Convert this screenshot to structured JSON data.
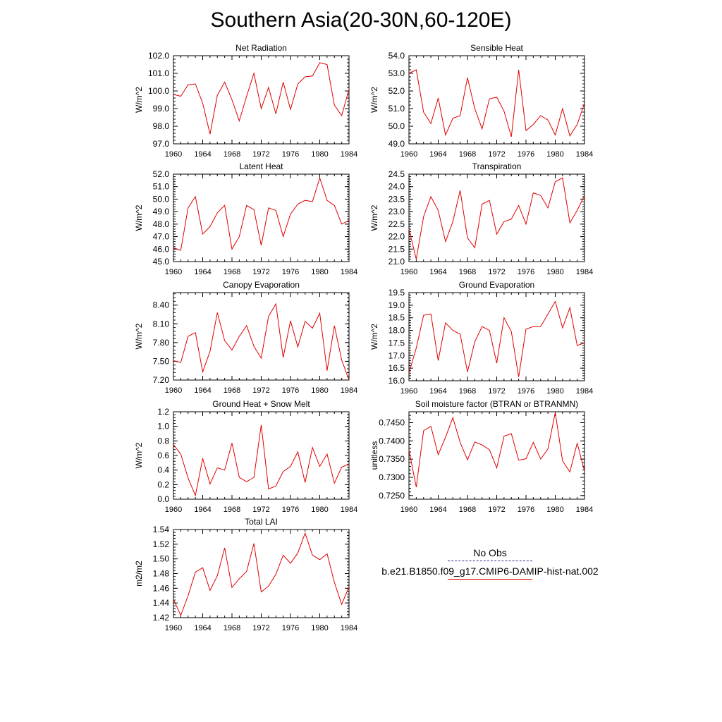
{
  "figure": {
    "title": "Southern Asia(20-30N,60-120E)"
  },
  "legend": {
    "items": [
      {
        "label": "No Obs",
        "style": "dashed",
        "color": "#2a2a8a"
      },
      {
        "label": "b.e21.B1850.f09_g17.CMIP6-DAMIP-hist-nat.002",
        "style": "solid",
        "color": "#e00000"
      }
    ]
  },
  "chart_data": [
    {
      "type": "line",
      "title": "Net Radiation",
      "ylabel": "W/m^2",
      "xlim": [
        1960,
        1984
      ],
      "ylim": [
        97.0,
        102.0
      ],
      "xticks": [
        "1960",
        "1964",
        "1968",
        "1972",
        "1976",
        "1980",
        "1984"
      ],
      "yticks": [
        "97.0",
        "98.0",
        "99.0",
        "100.0",
        "101.0",
        "102.0"
      ],
      "series": [
        {
          "color": "#e00000",
          "x": [
            1960,
            1961,
            1962,
            1963,
            1964,
            1965,
            1966,
            1967,
            1968,
            1969,
            1970,
            1971,
            1972,
            1973,
            1974,
            1975,
            1976,
            1977,
            1978,
            1979,
            1980,
            1981,
            1982,
            1983,
            1984
          ],
          "y": [
            99.8,
            99.7,
            100.35,
            100.4,
            99.3,
            97.55,
            99.75,
            100.5,
            99.5,
            98.3,
            99.7,
            101.0,
            99.0,
            100.2,
            98.7,
            100.5,
            98.95,
            100.4,
            100.8,
            100.85,
            101.6,
            101.5,
            99.2,
            98.6,
            100.1
          ]
        }
      ]
    },
    {
      "type": "line",
      "title": "Sensible Heat",
      "ylabel": "W/m^2",
      "xlim": [
        1960,
        1984
      ],
      "ylim": [
        49.0,
        54.0
      ],
      "xticks": [
        "1960",
        "1964",
        "1968",
        "1972",
        "1976",
        "1980",
        "1984"
      ],
      "yticks": [
        "49.0",
        "50.0",
        "51.0",
        "52.0",
        "53.0",
        "54.0"
      ],
      "series": [
        {
          "color": "#e00000",
          "x": [
            1960,
            1961,
            1962,
            1963,
            1964,
            1965,
            1966,
            1967,
            1968,
            1969,
            1970,
            1971,
            1972,
            1973,
            1974,
            1975,
            1976,
            1977,
            1978,
            1979,
            1980,
            1981,
            1982,
            1983,
            1984
          ],
          "y": [
            53.0,
            53.2,
            50.8,
            50.15,
            51.6,
            49.5,
            50.45,
            50.6,
            52.75,
            51.0,
            49.85,
            51.55,
            51.65,
            50.85,
            49.4,
            53.2,
            49.75,
            50.1,
            50.6,
            50.35,
            49.5,
            51.0,
            49.45,
            50.1,
            51.3
          ]
        }
      ]
    },
    {
      "type": "line",
      "title": "Latent Heat",
      "ylabel": "W/m^2",
      "xlim": [
        1960,
        1984
      ],
      "ylim": [
        45.0,
        52.0
      ],
      "xticks": [
        "1960",
        "1964",
        "1968",
        "1972",
        "1976",
        "1980",
        "1984"
      ],
      "yticks": [
        "45.0",
        "46.0",
        "47.0",
        "48.0",
        "49.0",
        "50.0",
        "51.0",
        "52.0"
      ],
      "series": [
        {
          "color": "#e00000",
          "x": [
            1960,
            1961,
            1962,
            1963,
            1964,
            1965,
            1966,
            1967,
            1968,
            1969,
            1970,
            1971,
            1972,
            1973,
            1974,
            1975,
            1976,
            1977,
            1978,
            1979,
            1980,
            1981,
            1982,
            1983,
            1984
          ],
          "y": [
            46.1,
            45.9,
            49.3,
            50.2,
            47.2,
            47.8,
            48.9,
            49.5,
            46.0,
            47.0,
            49.5,
            49.15,
            46.3,
            49.3,
            49.1,
            47.0,
            48.8,
            49.6,
            49.9,
            49.8,
            51.7,
            49.9,
            49.5,
            48.0,
            48.3
          ]
        }
      ]
    },
    {
      "type": "line",
      "title": "Transpiration",
      "ylabel": "W/m^2",
      "xlim": [
        1960,
        1984
      ],
      "ylim": [
        21.0,
        24.5
      ],
      "xticks": [
        "1960",
        "1964",
        "1968",
        "1972",
        "1976",
        "1980",
        "1984"
      ],
      "yticks": [
        "21.0",
        "21.5",
        "22.0",
        "22.5",
        "23.0",
        "23.5",
        "24.0",
        "24.5"
      ],
      "series": [
        {
          "color": "#e00000",
          "x": [
            1960,
            1961,
            1962,
            1963,
            1964,
            1965,
            1966,
            1967,
            1968,
            1969,
            1970,
            1971,
            1972,
            1973,
            1974,
            1975,
            1976,
            1977,
            1978,
            1979,
            1980,
            1981,
            1982,
            1983,
            1984
          ],
          "y": [
            22.3,
            21.1,
            22.8,
            23.6,
            23.05,
            21.8,
            22.6,
            23.85,
            21.95,
            21.55,
            23.3,
            23.45,
            22.1,
            22.6,
            22.7,
            23.25,
            22.5,
            23.75,
            23.65,
            23.15,
            24.2,
            24.35,
            22.55,
            23.05,
            23.65
          ]
        }
      ]
    },
    {
      "type": "line",
      "title": "Canopy Evaporation",
      "ylabel": "W/m^2",
      "xlim": [
        1960,
        1984
      ],
      "ylim": [
        7.2,
        8.6
      ],
      "xticks": [
        "1960",
        "1964",
        "1968",
        "1972",
        "1976",
        "1980",
        "1984"
      ],
      "yticks": [
        "7.20",
        "7.50",
        "7.80",
        "8.10",
        "8.40"
      ],
      "series": [
        {
          "color": "#e00000",
          "x": [
            1960,
            1961,
            1962,
            1963,
            1964,
            1965,
            1966,
            1967,
            1968,
            1969,
            1970,
            1971,
            1972,
            1973,
            1974,
            1975,
            1976,
            1977,
            1978,
            1979,
            1980,
            1981,
            1982,
            1983,
            1984
          ],
          "y": [
            7.51,
            7.48,
            7.9,
            7.96,
            7.33,
            7.66,
            8.28,
            7.83,
            7.68,
            7.9,
            8.07,
            7.74,
            7.55,
            8.22,
            8.42,
            7.56,
            8.15,
            7.73,
            8.14,
            8.03,
            8.27,
            7.35,
            8.07,
            7.52,
            7.2
          ]
        }
      ]
    },
    {
      "type": "line",
      "title": "Ground Evaporation",
      "ylabel": "W/m^2",
      "xlim": [
        1960,
        1984
      ],
      "ylim": [
        16.0,
        19.5
      ],
      "xticks": [
        "1960",
        "1964",
        "1968",
        "1972",
        "1976",
        "1980",
        "1984"
      ],
      "yticks": [
        "16.0",
        "16.5",
        "17.0",
        "17.5",
        "18.0",
        "18.5",
        "19.0",
        "19.5"
      ],
      "series": [
        {
          "color": "#e00000",
          "x": [
            1960,
            1961,
            1962,
            1963,
            1964,
            1965,
            1966,
            1967,
            1968,
            1969,
            1970,
            1971,
            1972,
            1973,
            1974,
            1975,
            1976,
            1977,
            1978,
            1979,
            1980,
            1981,
            1982,
            1983,
            1984
          ],
          "y": [
            16.3,
            17.3,
            18.6,
            18.65,
            16.8,
            18.3,
            18.0,
            17.85,
            16.35,
            17.55,
            18.15,
            18.0,
            16.7,
            18.5,
            17.95,
            16.15,
            18.05,
            18.15,
            18.15,
            18.65,
            19.15,
            18.1,
            18.9,
            17.4,
            17.5
          ]
        }
      ]
    },
    {
      "type": "line",
      "title": "Ground Heat + Snow Melt",
      "ylabel": "W/m^2",
      "xlim": [
        1960,
        1984
      ],
      "ylim": [
        0.0,
        1.2
      ],
      "xticks": [
        "1960",
        "1964",
        "1968",
        "1972",
        "1976",
        "1980",
        "1984"
      ],
      "yticks": [
        "0.0",
        "0.2",
        "0.4",
        "0.6",
        "0.8",
        "1.0",
        "1.2"
      ],
      "series": [
        {
          "color": "#e00000",
          "x": [
            1960,
            1961,
            1962,
            1963,
            1964,
            1965,
            1966,
            1967,
            1968,
            1969,
            1970,
            1971,
            1972,
            1973,
            1974,
            1975,
            1976,
            1977,
            1978,
            1979,
            1980,
            1981,
            1982,
            1983,
            1984
          ],
          "y": [
            0.75,
            0.62,
            0.29,
            0.05,
            0.56,
            0.21,
            0.43,
            0.4,
            0.77,
            0.3,
            0.24,
            0.3,
            1.02,
            0.14,
            0.18,
            0.38,
            0.45,
            0.65,
            0.23,
            0.71,
            0.45,
            0.62,
            0.22,
            0.44,
            0.48
          ]
        }
      ]
    },
    {
      "type": "line",
      "title": "Soil moisture factor (BTRAN or BTRANMN)",
      "ylabel": "unitless",
      "xlim": [
        1960,
        1984
      ],
      "ylim": [
        0.724,
        0.748
      ],
      "xticks": [
        "1960",
        "1964",
        "1968",
        "1972",
        "1976",
        "1980",
        "1984"
      ],
      "yticks": [
        "0.7250",
        "0.7300",
        "0.7350",
        "0.7400",
        "0.7450"
      ],
      "series": [
        {
          "color": "#e00000",
          "x": [
            1960,
            1961,
            1962,
            1963,
            1964,
            1965,
            1966,
            1967,
            1968,
            1969,
            1970,
            1971,
            1972,
            1973,
            1974,
            1975,
            1976,
            1977,
            1978,
            1979,
            1980,
            1981,
            1982,
            1983,
            1984
          ],
          "y": [
            0.7375,
            0.7273,
            0.7428,
            0.744,
            0.7362,
            0.741,
            0.7464,
            0.7396,
            0.7348,
            0.7397,
            0.7389,
            0.7376,
            0.7326,
            0.7413,
            0.742,
            0.7347,
            0.7351,
            0.7396,
            0.735,
            0.7378,
            0.7478,
            0.7345,
            0.7315,
            0.7394,
            0.7317
          ]
        }
      ]
    },
    {
      "type": "line",
      "title": "Total LAI",
      "ylabel": "m2/m2",
      "xlim": [
        1960,
        1984
      ],
      "ylim": [
        1.42,
        1.54
      ],
      "xticks": [
        "1960",
        "1964",
        "1968",
        "1972",
        "1976",
        "1980",
        "1984"
      ],
      "yticks": [
        "1.42",
        "1.44",
        "1.46",
        "1.48",
        "1.50",
        "1.52",
        "1.54"
      ],
      "series": [
        {
          "color": "#e00000",
          "x": [
            1960,
            1961,
            1962,
            1963,
            1964,
            1965,
            1966,
            1967,
            1968,
            1969,
            1970,
            1971,
            1972,
            1973,
            1974,
            1975,
            1976,
            1977,
            1978,
            1979,
            1980,
            1981,
            1982,
            1983,
            1984
          ],
          "y": [
            1.445,
            1.423,
            1.45,
            1.482,
            1.488,
            1.457,
            1.477,
            1.515,
            1.461,
            1.473,
            1.483,
            1.521,
            1.455,
            1.463,
            1.479,
            1.505,
            1.494,
            1.508,
            1.535,
            1.505,
            1.499,
            1.507,
            1.468,
            1.438,
            1.462
          ]
        }
      ]
    }
  ]
}
